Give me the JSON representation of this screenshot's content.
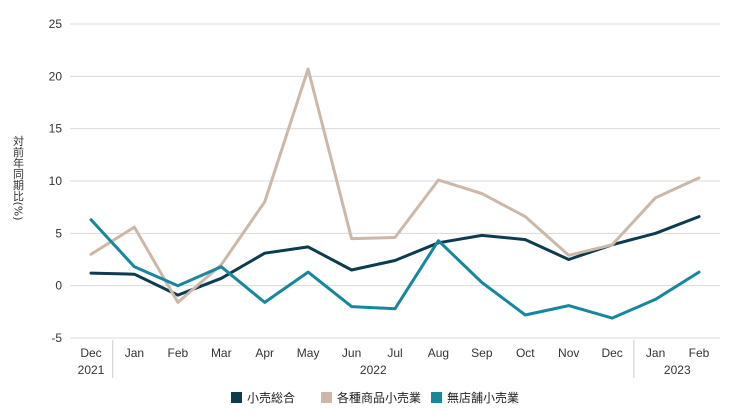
{
  "chart_data": {
    "type": "line",
    "categories": [
      "Dec",
      "Jan",
      "Feb",
      "Mar",
      "Apr",
      "May",
      "Jun",
      "Jul",
      "Aug",
      "Sep",
      "Oct",
      "Nov",
      "Dec",
      "Jan",
      "Feb"
    ],
    "years": [
      {
        "label": "2021",
        "start": 0,
        "end": 0
      },
      {
        "label": "2022",
        "start": 1,
        "end": 12
      },
      {
        "label": "2023",
        "start": 13,
        "end": 14
      }
    ],
    "ylabel": "対前年同期比(%)",
    "ylim": [
      -5,
      25
    ],
    "yticks": [
      -5,
      0,
      5,
      10,
      15,
      20,
      25
    ],
    "grid": true,
    "legend_position": "bottom",
    "series": [
      {
        "name": "小売総合",
        "color": "#0d3b4f",
        "values": [
          1.2,
          1.1,
          -0.9,
          0.7,
          3.1,
          3.7,
          1.5,
          2.4,
          4.1,
          4.8,
          4.4,
          2.5,
          3.9,
          5.0,
          6.6
        ]
      },
      {
        "name": "各種商品小売業",
        "color": "#cdb8a8",
        "values": [
          3.0,
          5.6,
          -1.6,
          2.0,
          8.0,
          20.7,
          4.5,
          4.6,
          10.1,
          8.8,
          6.6,
          2.9,
          3.9,
          8.4,
          10.3
        ]
      },
      {
        "name": "無店舗小売業",
        "color": "#16879e",
        "values": [
          6.3,
          1.8,
          0.0,
          1.8,
          -1.6,
          1.3,
          -2.0,
          -2.2,
          4.3,
          0.3,
          -2.8,
          -1.9,
          -3.1,
          -1.3,
          1.3
        ]
      }
    ]
  }
}
